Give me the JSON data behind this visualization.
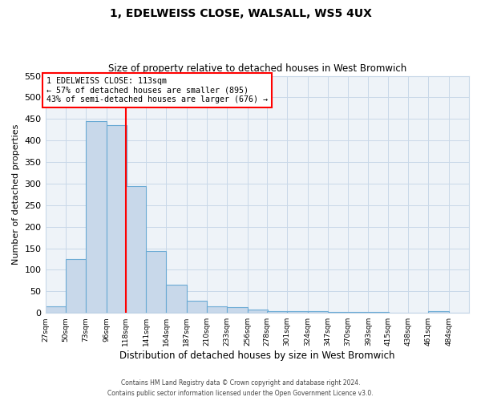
{
  "title": "1, EDELWEISS CLOSE, WALSALL, WS5 4UX",
  "subtitle": "Size of property relative to detached houses in West Bromwich",
  "xlabel": "Distribution of detached houses by size in West Bromwich",
  "ylabel": "Number of detached properties",
  "bar_color": "#c8d8ea",
  "bar_edge_color": "#6aaad4",
  "grid_color": "#c8d8e8",
  "background_color": "#eef3f8",
  "bin_edges": [
    27,
    50,
    73,
    96,
    118,
    141,
    164,
    187,
    210,
    233,
    256,
    278,
    301,
    324,
    347,
    370,
    393,
    415,
    438,
    461,
    484,
    507
  ],
  "bin_labels": [
    "27sqm",
    "50sqm",
    "73sqm",
    "96sqm",
    "118sqm",
    "141sqm",
    "164sqm",
    "187sqm",
    "210sqm",
    "233sqm",
    "256sqm",
    "278sqm",
    "301sqm",
    "324sqm",
    "347sqm",
    "370sqm",
    "393sqm",
    "415sqm",
    "438sqm",
    "461sqm",
    "484sqm"
  ],
  "counts": [
    15,
    125,
    445,
    435,
    295,
    143,
    65,
    28,
    16,
    13,
    7,
    5,
    5,
    4,
    2,
    2,
    2,
    1,
    1,
    5,
    0
  ],
  "vline_x": 118,
  "annotation_title": "1 EDELWEISS CLOSE: 113sqm",
  "annotation_line1": "← 57% of detached houses are smaller (895)",
  "annotation_line2": "43% of semi-detached houses are larger (676) →",
  "annotation_box_color": "white",
  "annotation_box_edge_color": "red",
  "vline_color": "red",
  "ylim": [
    0,
    550
  ],
  "yticks": [
    0,
    50,
    100,
    150,
    200,
    250,
    300,
    350,
    400,
    450,
    500,
    550
  ],
  "footer1": "Contains HM Land Registry data © Crown copyright and database right 2024.",
  "footer2": "Contains public sector information licensed under the Open Government Licence v3.0."
}
